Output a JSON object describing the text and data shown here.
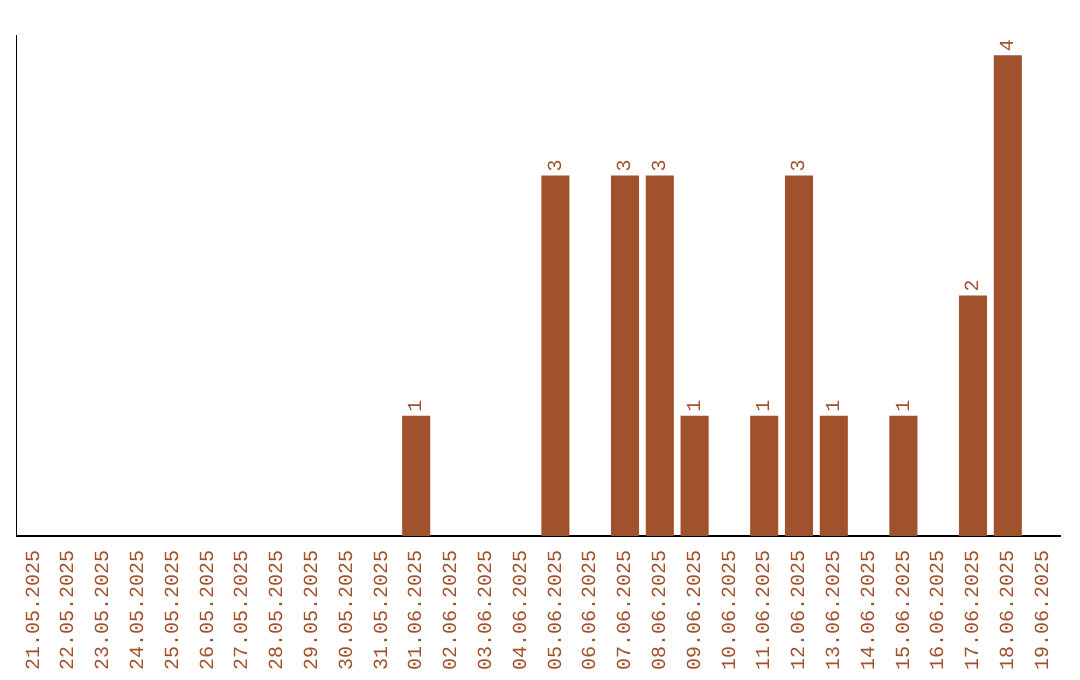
{
  "chart_data": {
    "type": "bar",
    "categories": [
      "21.05.2025",
      "22.05.2025",
      "23.05.2025",
      "24.05.2025",
      "25.05.2025",
      "26.05.2025",
      "27.05.2025",
      "28.05.2025",
      "29.05.2025",
      "30.05.2025",
      "31.05.2025",
      "01.06.2025",
      "02.06.2025",
      "03.06.2025",
      "04.06.2025",
      "05.06.2025",
      "06.06.2025",
      "07.06.2025",
      "08.06.2025",
      "09.06.2025",
      "10.06.2025",
      "11.06.2025",
      "12.06.2025",
      "13.06.2025",
      "14.06.2025",
      "15.06.2025",
      "16.06.2025",
      "17.06.2025",
      "18.06.2025",
      "19.06.2025"
    ],
    "values": [
      0,
      0,
      0,
      0,
      0,
      0,
      0,
      0,
      0,
      0,
      0,
      1,
      0,
      0,
      0,
      3,
      0,
      3,
      3,
      1,
      0,
      1,
      3,
      1,
      0,
      1,
      0,
      2,
      4,
      0
    ],
    "value_labels": [
      null,
      null,
      null,
      null,
      null,
      null,
      null,
      null,
      null,
      null,
      null,
      "1",
      null,
      null,
      null,
      "3",
      null,
      "3",
      "3",
      "1",
      null,
      "1",
      "3",
      "1",
      null,
      "1",
      null,
      "2",
      "4",
      null
    ],
    "color": "#a0522d",
    "grid": false,
    "legend": false,
    "tick_labels": "x"
  }
}
